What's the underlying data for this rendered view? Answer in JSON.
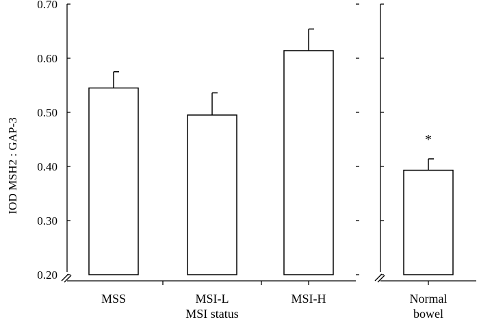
{
  "chart_data": {
    "type": "bar",
    "title": "",
    "ylabel": "IOD MSH2 : GAP-3",
    "ylim": [
      0.2,
      0.7
    ],
    "yticks": [
      "0.20",
      "0.30",
      "0.40",
      "0.50",
      "0.60",
      "0.70"
    ],
    "y_axis_break": true,
    "grid": false,
    "legend": "none",
    "panels": [
      {
        "xlabel": "MSI status",
        "categories": [
          "MSS",
          "MSI-L",
          "MSI-H"
        ],
        "values": [
          0.545,
          0.495,
          0.614
        ],
        "errors": [
          0.03,
          0.041,
          0.04
        ],
        "annotations": [
          "",
          "",
          ""
        ]
      },
      {
        "xlabel": "",
        "categories": [
          "Normal\nbowel"
        ],
        "values": [
          0.393
        ],
        "errors": [
          0.021
        ],
        "annotations": [
          "*"
        ]
      }
    ],
    "colors": {
      "bar_fill": "#ffffff",
      "stroke": "#000000"
    }
  }
}
